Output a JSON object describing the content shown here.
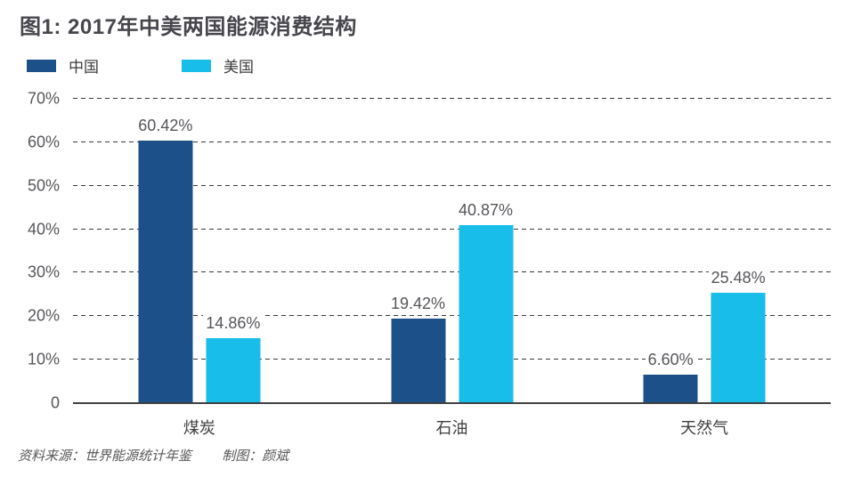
{
  "title": "图1: 2017年中美两国能源消费结构",
  "legend": [
    {
      "label": "中国",
      "color": "#1b5088"
    },
    {
      "label": "美国",
      "color": "#19bdea"
    }
  ],
  "chart_data": {
    "type": "bar",
    "title": "图1: 2017年中美两国能源消费结构",
    "categories": [
      "煤炭",
      "石油",
      "天然气"
    ],
    "series": [
      {
        "name": "中国",
        "color": "#1b5088",
        "values": [
          60.42,
          19.42,
          6.6
        ],
        "value_labels": [
          "60.42%",
          "19.42%",
          "6.60%"
        ]
      },
      {
        "name": "美国",
        "color": "#19bdea",
        "values": [
          14.86,
          40.87,
          25.48
        ],
        "value_labels": [
          "14.86%",
          "40.87%",
          "25.48%"
        ]
      }
    ],
    "xlabel": "",
    "ylabel": "",
    "ylim": [
      0,
      70
    ],
    "yticks": [
      {
        "label": "70%",
        "value": 70
      },
      {
        "label": "60%",
        "value": 60
      },
      {
        "label": "50%",
        "value": 50
      },
      {
        "label": "40%",
        "value": 40
      },
      {
        "label": "30%",
        "value": 30
      },
      {
        "label": "20%",
        "value": 20
      },
      {
        "label": "10%",
        "value": 10
      },
      {
        "label": "0",
        "value": 0
      }
    ],
    "grid": "horizontal-dashed",
    "legend_position": "top-left"
  },
  "footer": {
    "source": "资料来源：世界能源统计年鉴",
    "credit": "制图：颜斌"
  }
}
